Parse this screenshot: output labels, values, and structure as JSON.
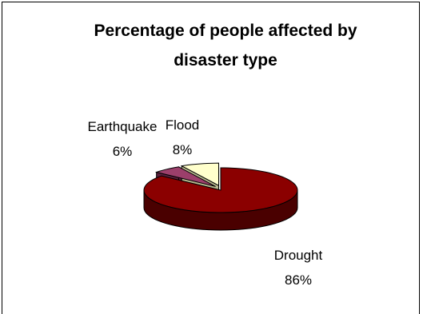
{
  "chart_data": {
    "type": "pie",
    "title_lines": [
      "Percentage of people affected by",
      "disaster type"
    ],
    "slices": [
      {
        "label": "Drought",
        "percent_label": "86%",
        "value": 86,
        "top_color": "#8b0000",
        "side_color": "#4a0000"
      },
      {
        "label": "Earthquake",
        "percent_label": "6%",
        "value": 6,
        "top_color": "#9c3f6b",
        "side_color": "#5a1f3c"
      },
      {
        "label": "Flood",
        "percent_label": "8%",
        "value": 8,
        "top_color": "#ffffcc",
        "side_color": "#b8b88e"
      }
    ],
    "style": "3d-exploded",
    "legend": "none"
  }
}
